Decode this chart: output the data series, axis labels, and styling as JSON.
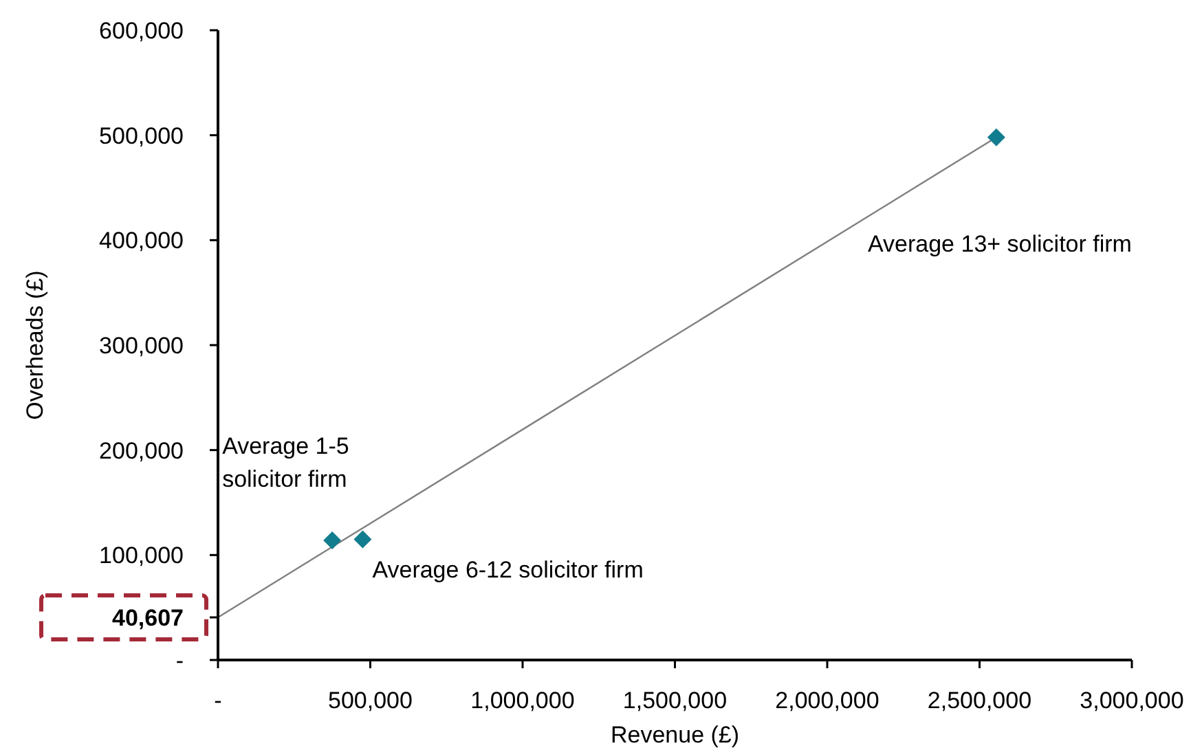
{
  "chart_data": {
    "type": "scatter",
    "xlabel": "Revenue (£)",
    "ylabel": "Overheads (£)",
    "xlim": [
      0,
      3000000
    ],
    "xticks": [
      {
        "value": 0,
        "label": "-"
      },
      {
        "value": 500000,
        "label": "500,000"
      },
      {
        "value": 1000000,
        "label": "1,000,000"
      },
      {
        "value": 1500000,
        "label": "1,500,000"
      },
      {
        "value": 2000000,
        "label": "2,000,000"
      },
      {
        "value": 2500000,
        "label": "2,500,000"
      },
      {
        "value": 3000000,
        "label": "3,000,000"
      }
    ],
    "ylim": [
      0,
      600000
    ],
    "yticks": [
      {
        "value": 0,
        "label": "-"
      },
      {
        "value": 40607,
        "label": "40,607"
      },
      {
        "value": 100000,
        "label": "100,000"
      },
      {
        "value": 200000,
        "label": "200,000"
      },
      {
        "value": 300000,
        "label": "300,000"
      },
      {
        "value": 400000,
        "label": "400,000"
      },
      {
        "value": 500000,
        "label": "500,000"
      },
      {
        "value": 600000,
        "label": "600,000"
      }
    ],
    "series": [
      {
        "type": "line",
        "color": "#808080",
        "x": [
          0,
          2555000
        ],
        "values": [
          40607,
          498000
        ]
      },
      {
        "color": "#127d8f",
        "marker": "diamond",
        "x": [
          375000,
          475000,
          2555000
        ],
        "values": [
          114000,
          115000,
          498000
        ]
      }
    ],
    "annotations": [
      {
        "text": "Average 1-5\nsolicitor firm",
        "x": 375000,
        "y": 114000
      },
      {
        "text": "Average 6-12 solicitor firm",
        "x": 475000,
        "y": 115000
      },
      "Average 13+ solicitor firm"
    ]
  }
}
